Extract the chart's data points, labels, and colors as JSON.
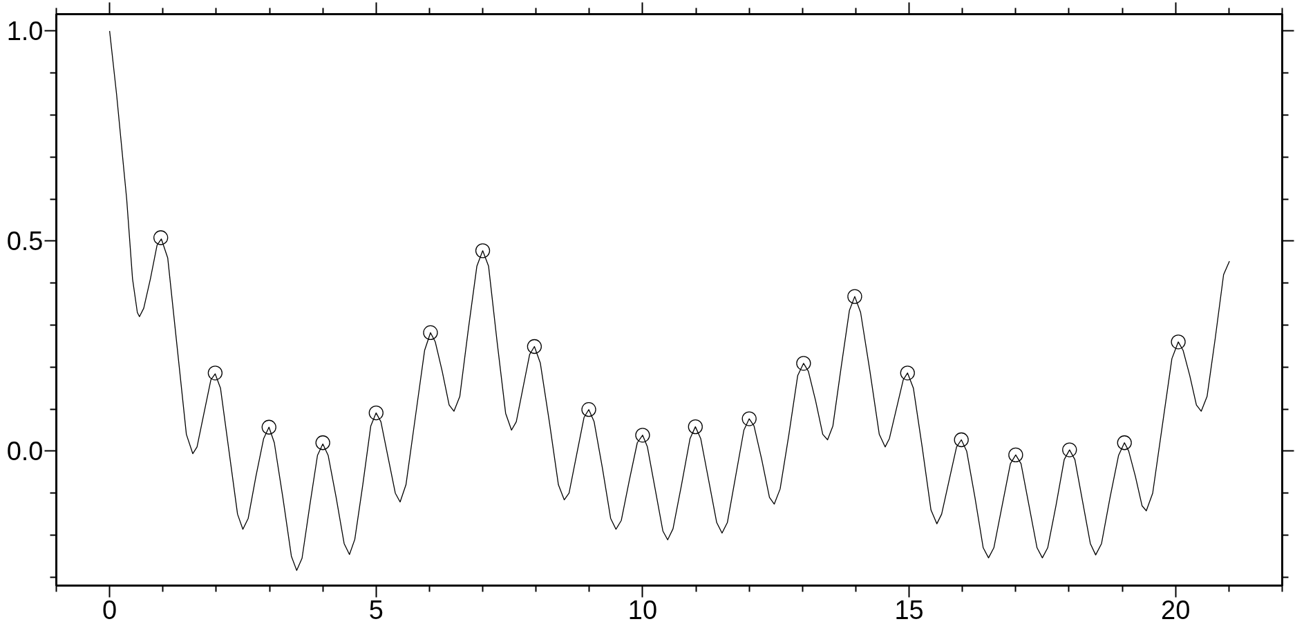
{
  "chart_data": {
    "type": "line",
    "xlim": [
      -1,
      22
    ],
    "ylim": [
      -0.32,
      1.04
    ],
    "xticks": [
      {
        "value": -1,
        "label": null
      },
      0,
      {
        "value": 1,
        "label": null
      },
      {
        "value": 2,
        "label": null
      },
      {
        "value": 3,
        "label": null
      },
      {
        "value": 4,
        "label": null
      },
      5,
      {
        "value": 6,
        "label": null
      },
      {
        "value": 7,
        "label": null
      },
      {
        "value": 8,
        "label": null
      },
      {
        "value": 9,
        "label": null
      },
      10,
      {
        "value": 11,
        "label": null
      },
      {
        "value": 12,
        "label": null
      },
      {
        "value": 13,
        "label": null
      },
      {
        "value": 14,
        "label": null
      },
      15,
      {
        "value": 16,
        "label": null
      },
      {
        "value": 17,
        "label": null
      },
      {
        "value": 18,
        "label": null
      },
      {
        "value": 19,
        "label": null
      },
      20,
      {
        "value": 21,
        "label": null
      },
      {
        "value": 22,
        "label": null
      }
    ],
    "yticks": [
      {
        "value": -0.3,
        "label": null
      },
      {
        "value": -0.2,
        "label": null
      },
      {
        "value": -0.1,
        "label": null
      },
      {
        "value": 0,
        "label": "0.0"
      },
      {
        "value": 0.1,
        "label": null
      },
      {
        "value": 0.2,
        "label": null
      },
      {
        "value": 0.3,
        "label": null
      },
      {
        "value": 0.4,
        "label": null
      },
      {
        "value": 0.5,
        "label": "0.5"
      },
      {
        "value": 0.6,
        "label": null
      },
      {
        "value": 0.7,
        "label": null
      },
      {
        "value": 0.8,
        "label": null
      },
      {
        "value": 0.9,
        "label": null
      },
      {
        "value": 1,
        "label": "1.0"
      }
    ],
    "series": [
      {
        "color": "#000000",
        "x": [
          0,
          0.13,
          0.32,
          0.43,
          0.52,
          0.56,
          0.64,
          0.765,
          0.89,
          0.97,
          1.09,
          1.265,
          1.44,
          1.56,
          1.64,
          1.77,
          1.9,
          1.98,
          2.08,
          2.24,
          2.4,
          2.5,
          2.6,
          2.745,
          2.89,
          2.99,
          3.09,
          3.25,
          3.41,
          3.51,
          3.61,
          3.755,
          3.9,
          4.0,
          4.1,
          4.25,
          4.4,
          4.5,
          4.6,
          4.75,
          4.9,
          5.0,
          5.09,
          5.225,
          5.36,
          5.45,
          5.56,
          5.735,
          5.91,
          6.02,
          6.11,
          6.24,
          6.37,
          6.46,
          6.57,
          6.73,
          6.89,
          7.0,
          7.11,
          7.27,
          7.43,
          7.54,
          7.63,
          7.755,
          7.88,
          7.97,
          8.08,
          8.25,
          8.42,
          8.53,
          8.62,
          8.76,
          8.9,
          8.99,
          9.09,
          9.245,
          9.4,
          9.5,
          9.6,
          9.75,
          9.9,
          10.0,
          10.09,
          10.235,
          10.38,
          10.47,
          10.57,
          10.73,
          10.89,
          10.99,
          11.09,
          11.24,
          11.39,
          11.49,
          11.59,
          11.745,
          11.9,
          12.0,
          12.09,
          12.235,
          12.38,
          12.47,
          12.58,
          12.745,
          12.91,
          13.02,
          13.11,
          13.245,
          13.38,
          13.47,
          13.57,
          13.725,
          13.88,
          13.98,
          14.09,
          14.265,
          14.44,
          14.55,
          14.63,
          14.76,
          14.89,
          14.97,
          15.08,
          15.245,
          15.41,
          15.52,
          15.61,
          15.75,
          15.89,
          15.98,
          16.08,
          16.235,
          16.39,
          16.49,
          16.59,
          16.745,
          16.9,
          17.0,
          17.1,
          17.25,
          17.4,
          17.5,
          17.6,
          17.755,
          17.91,
          18.01,
          18.11,
          18.255,
          18.4,
          18.5,
          18.61,
          18.77,
          18.93,
          19.04,
          19.12,
          19.245,
          19.37,
          19.45,
          19.57,
          19.75,
          19.93,
          20.05,
          20.14,
          20.265,
          20.39,
          20.48,
          20.59,
          20.745,
          20.9,
          21.01
        ],
        "values": [
          1.0,
          0.85,
          0.6,
          0.41,
          0.33,
          0.32,
          0.34,
          0.41,
          0.49,
          0.505,
          0.46,
          0.25,
          0.04,
          -0.006,
          0.01,
          0.09,
          0.17,
          0.184,
          0.15,
          0.0,
          -0.15,
          -0.186,
          -0.16,
          -0.06,
          0.03,
          0.057,
          0.02,
          -0.11,
          -0.25,
          -0.284,
          -0.255,
          -0.13,
          -0.01,
          0.017,
          -0.01,
          -0.11,
          -0.22,
          -0.246,
          -0.21,
          -0.08,
          0.06,
          0.091,
          0.07,
          -0.015,
          -0.1,
          -0.121,
          -0.08,
          0.08,
          0.24,
          0.282,
          0.26,
          0.19,
          0.11,
          0.095,
          0.13,
          0.29,
          0.44,
          0.477,
          0.44,
          0.26,
          0.09,
          0.05,
          0.07,
          0.15,
          0.23,
          0.249,
          0.21,
          0.07,
          -0.08,
          -0.116,
          -0.1,
          -0.01,
          0.08,
          0.099,
          0.07,
          -0.04,
          -0.16,
          -0.186,
          -0.165,
          -0.07,
          0.02,
          0.038,
          0.01,
          -0.09,
          -0.19,
          -0.211,
          -0.185,
          -0.08,
          0.03,
          0.058,
          0.03,
          -0.07,
          -0.17,
          -0.195,
          -0.17,
          -0.06,
          0.05,
          0.077,
          0.06,
          -0.02,
          -0.11,
          -0.126,
          -0.09,
          0.04,
          0.18,
          0.209,
          0.19,
          0.12,
          0.04,
          0.027,
          0.06,
          0.2,
          0.335,
          0.368,
          0.33,
          0.19,
          0.04,
          0.01,
          0.03,
          0.1,
          0.17,
          0.186,
          0.15,
          0.01,
          -0.14,
          -0.173,
          -0.15,
          -0.07,
          0.01,
          0.027,
          0.0,
          -0.11,
          -0.23,
          -0.254,
          -0.23,
          -0.13,
          -0.03,
          -0.009,
          -0.03,
          -0.13,
          -0.23,
          -0.254,
          -0.23,
          -0.13,
          -0.02,
          0.003,
          -0.02,
          -0.12,
          -0.22,
          -0.247,
          -0.22,
          -0.11,
          -0.01,
          0.02,
          0.0,
          -0.06,
          -0.13,
          -0.142,
          -0.1,
          0.06,
          0.22,
          0.26,
          0.24,
          0.18,
          0.11,
          0.095,
          0.13,
          0.27,
          0.42,
          0.452
        ]
      },
      {
        "type": "scatter",
        "color": "#000000",
        "marker": "circle",
        "x": [
          0.96,
          1.98,
          2.99,
          4.0,
          5.0,
          6.02,
          7.0,
          7.97,
          8.99,
          10.0,
          10.99,
          12.0,
          13.02,
          13.98,
          14.97,
          15.98,
          17.0,
          18.01,
          19.04,
          20.05
        ],
        "values": [
          0.508,
          0.186,
          0.057,
          0.02,
          0.091,
          0.282,
          0.477,
          0.249,
          0.099,
          0.038,
          0.058,
          0.077,
          0.209,
          0.368,
          0.186,
          0.027,
          -0.009,
          0.003,
          0.02,
          0.26
        ]
      }
    ]
  }
}
